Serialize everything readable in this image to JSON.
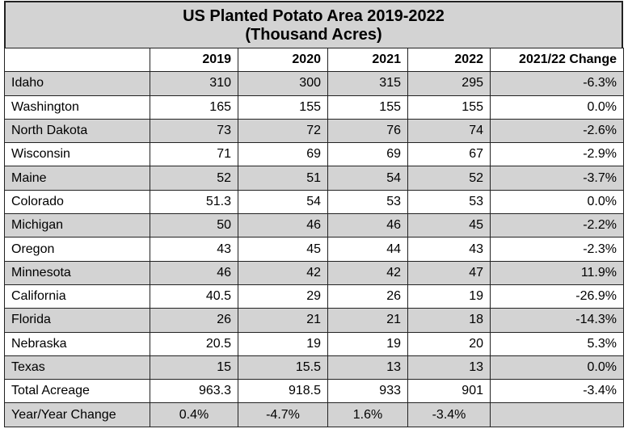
{
  "header": {
    "title": "US Planted Potato Area 2019-2022",
    "subtitle": "(Thousand Acres)"
  },
  "table": {
    "columns": [
      "2019",
      "2020",
      "2021",
      "2022",
      "2021/22 Change"
    ],
    "rows": [
      [
        "Idaho",
        "310",
        "300",
        "315",
        "295",
        "-6.3%"
      ],
      [
        "Washington",
        "165",
        "155",
        "155",
        "155",
        "0.0%"
      ],
      [
        "North Dakota",
        "73",
        "72",
        "76",
        "74",
        "-2.6%"
      ],
      [
        "Wisconsin",
        "71",
        "69",
        "69",
        "67",
        "-2.9%"
      ],
      [
        "Maine",
        "52",
        "51",
        "54",
        "52",
        "-3.7%"
      ],
      [
        "Colorado",
        "51.3",
        "54",
        "53",
        "53",
        "0.0%"
      ],
      [
        "Michigan",
        "50",
        "46",
        "46",
        "45",
        "-2.2%"
      ],
      [
        "Oregon",
        "43",
        "45",
        "44",
        "43",
        "-2.3%"
      ],
      [
        "Minnesota",
        "46",
        "42",
        "42",
        "47",
        "11.9%"
      ],
      [
        "California",
        "40.5",
        "29",
        "26",
        "19",
        "-26.9%"
      ],
      [
        "Florida",
        "26",
        "21",
        "21",
        "18",
        "-14.3%"
      ],
      [
        "Nebraska",
        "20.5",
        "19",
        "19",
        "20",
        "5.3%"
      ],
      [
        "Texas",
        "15",
        "15.5",
        "13",
        "13",
        "0.0%"
      ],
      [
        "Total Acreage",
        "963.3",
        "918.5",
        "933",
        "901",
        "-3.4%"
      ],
      [
        "Year/Year Change",
        "0.4%",
        "-4.7%",
        "1.6%",
        "-3.4%"
      ]
    ]
  }
}
